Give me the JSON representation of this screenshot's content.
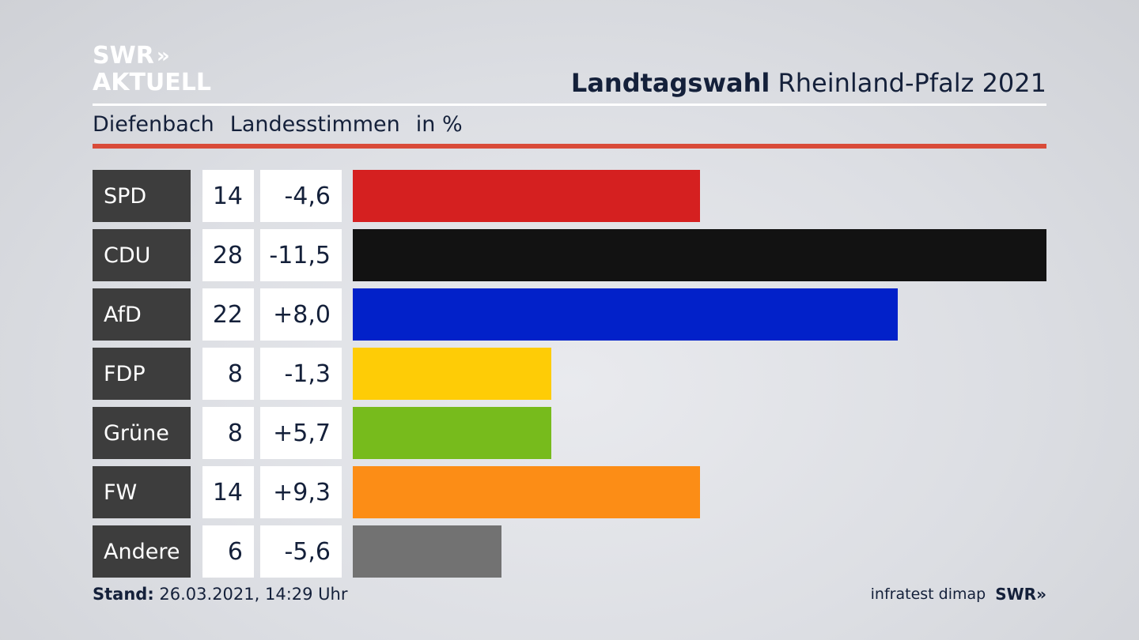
{
  "brand": {
    "logo_line1": "SWR",
    "logo_arrows": "»",
    "logo_line2": "AKTUELL"
  },
  "header": {
    "title_bold": "Landtagswahl",
    "title_rest": " Rheinland-Pfalz 2021"
  },
  "subheader": {
    "place": "Diefenbach",
    "vote_type": "Landesstimmen",
    "unit": "in %"
  },
  "footer": {
    "stand_label": "Stand:",
    "stand_value": " 26.03.2021, 14:29 Uhr",
    "source": "infratest dimap",
    "source_brand": "SWR»"
  },
  "colors": {
    "accent_red_rule": "#d94b39",
    "party_label_bg": "#3d3d3d",
    "text_navy": "#14203a"
  },
  "chart_data": {
    "type": "bar",
    "orientation": "horizontal",
    "categories": [
      "SPD",
      "CDU",
      "AfD",
      "FDP",
      "Grüne",
      "FW",
      "Andere"
    ],
    "values": [
      14,
      28,
      22,
      8,
      8,
      14,
      6
    ],
    "value_labels": [
      "14",
      "28",
      "22",
      "8",
      "8",
      "14",
      "6"
    ],
    "diff_labels": [
      "-4,6",
      "-11,5",
      "+8,0",
      "-1,3",
      "+5,7",
      "+9,3",
      "-5,6"
    ],
    "diff_values": [
      -4.6,
      -11.5,
      8.0,
      -1.3,
      5.7,
      9.3,
      -5.6
    ],
    "bar_colors": [
      "#d52020",
      "#121212",
      "#0221c9",
      "#fecc06",
      "#77bb1c",
      "#fc8d16",
      "#727272"
    ],
    "xlim": [
      0,
      28
    ],
    "grid": false
  }
}
